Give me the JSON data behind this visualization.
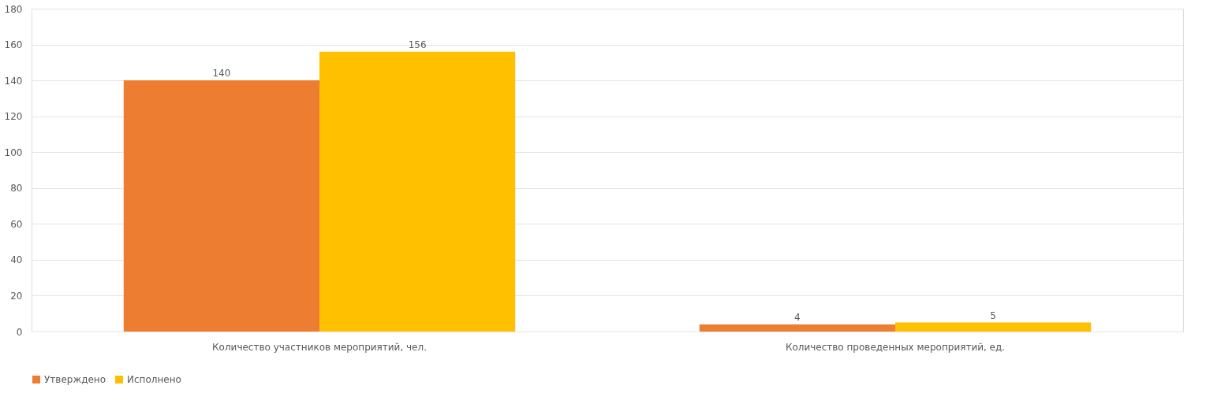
{
  "chart_data": {
    "type": "bar",
    "categories": [
      "Количество участников мероприятий, чел.",
      "Количество проведенных мероприятий, ед."
    ],
    "series": [
      {
        "name": "Утверждено",
        "color": "#ed7d31",
        "values": [
          140,
          4
        ]
      },
      {
        "name": "Исполнено",
        "color": "#ffc000",
        "values": [
          156,
          5
        ]
      }
    ],
    "ylim": [
      0,
      180
    ],
    "yticks": [
      0,
      20,
      40,
      60,
      80,
      100,
      120,
      140,
      160,
      180
    ],
    "grid": "y",
    "legend": "bottom",
    "data_labels": true
  }
}
